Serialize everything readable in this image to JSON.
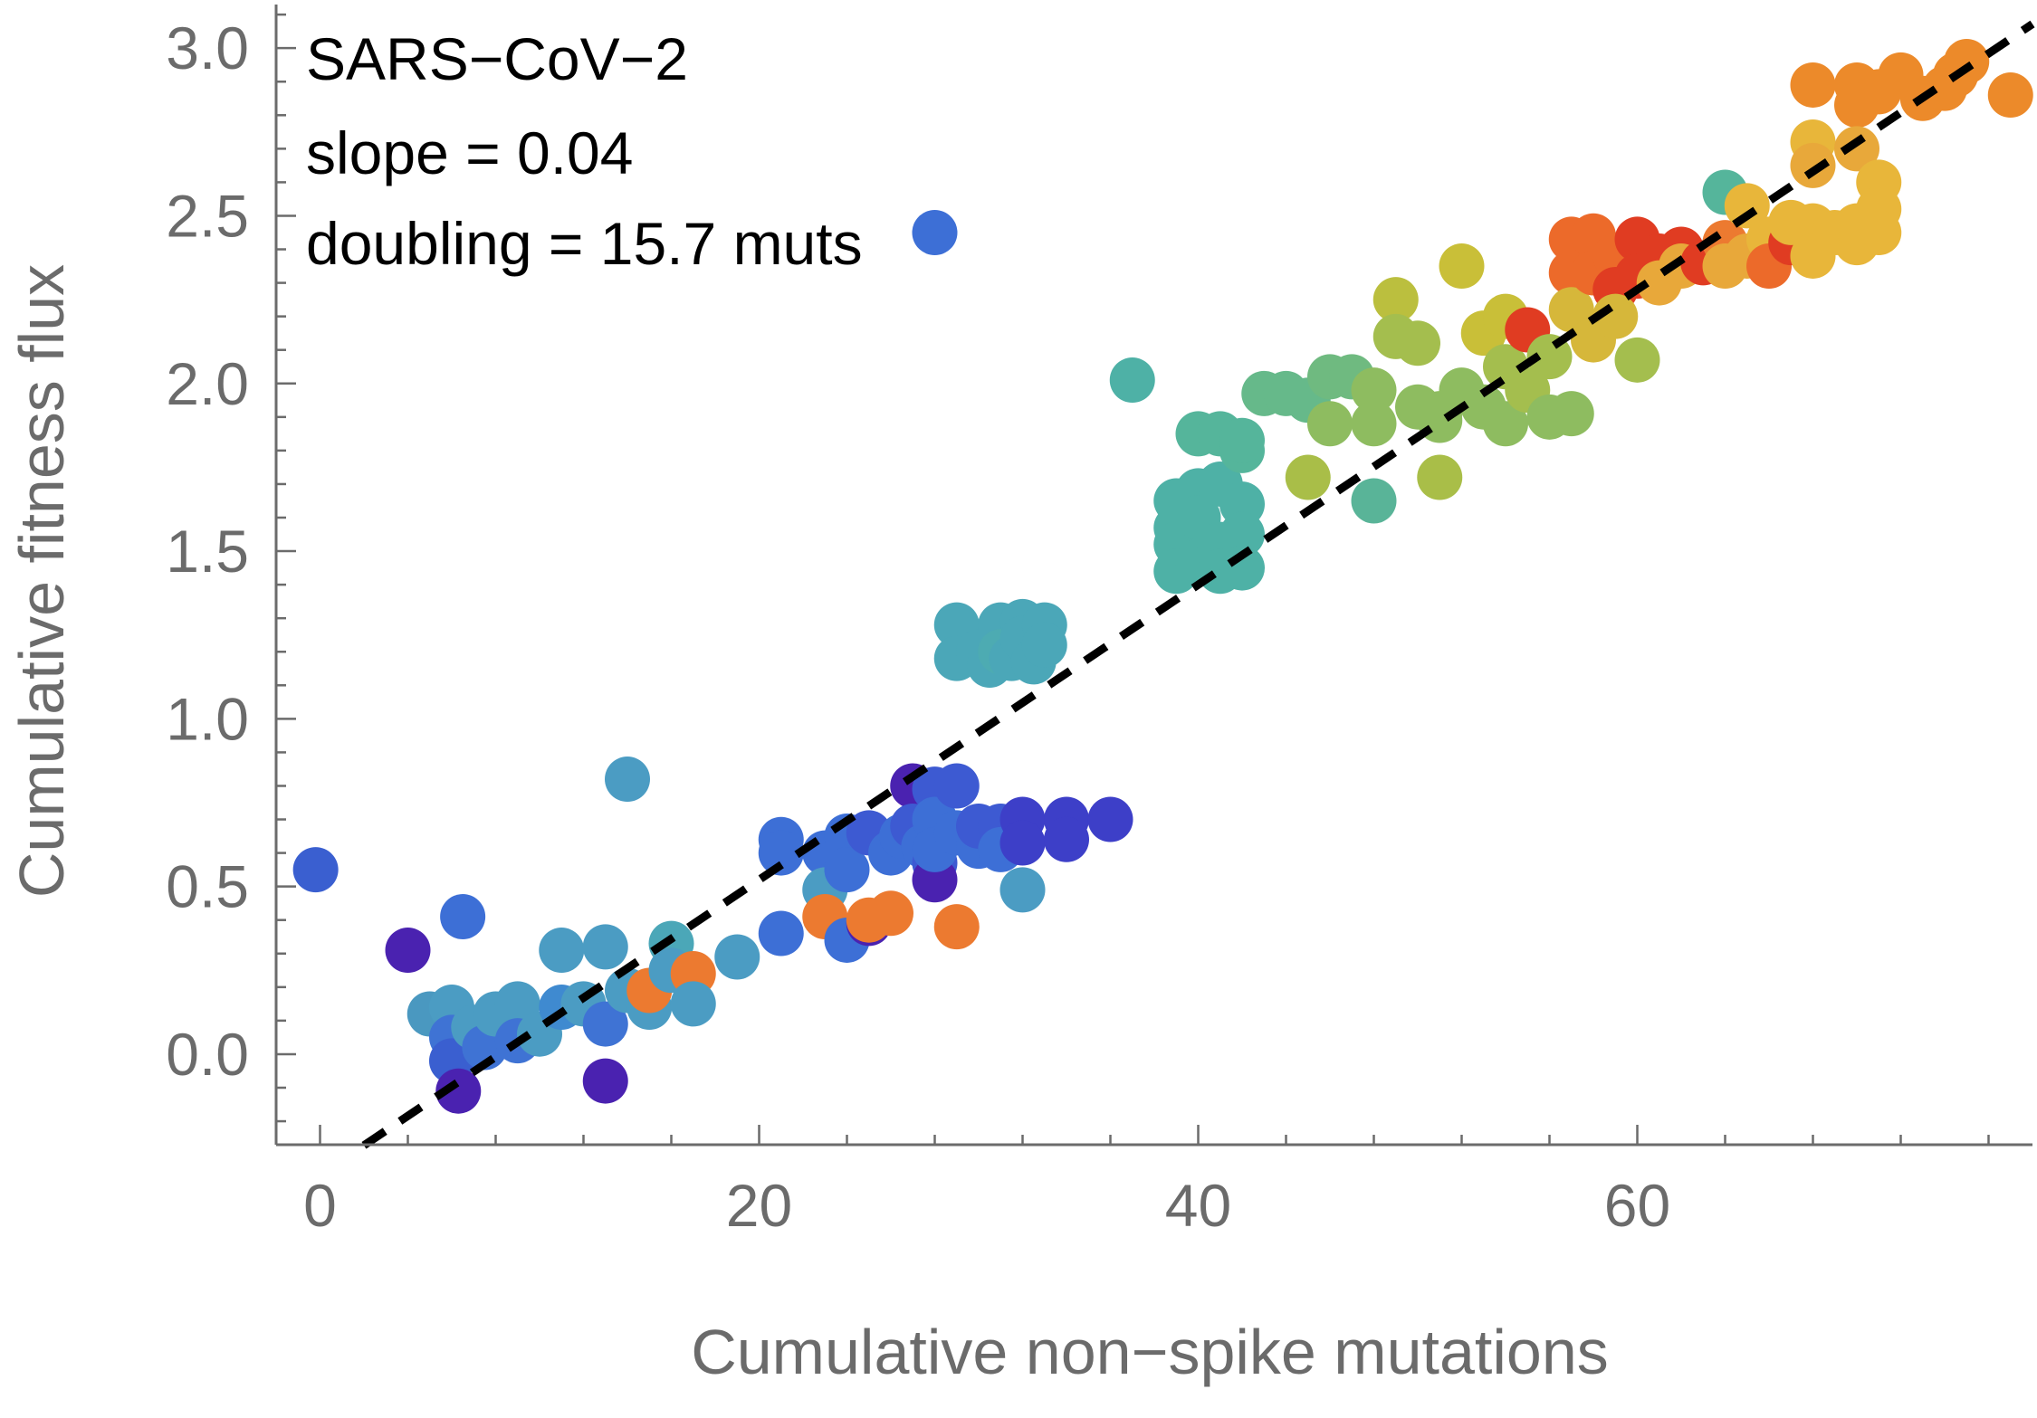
{
  "chart_data": {
    "type": "scatter",
    "title": "",
    "xlabel": "Cumulative non−spike mutations",
    "ylabel": "Cumulative fitness flux",
    "xlim": [
      -2,
      78
    ],
    "ylim": [
      -0.27,
      3.13
    ],
    "x_ticks": [
      0,
      20,
      40,
      60
    ],
    "x_tick_labels": [
      "0",
      "20",
      "40",
      "60"
    ],
    "y_ticks": [
      0.0,
      0.5,
      1.0,
      1.5,
      2.0,
      2.5,
      3.0
    ],
    "y_tick_labels": [
      "0.0",
      "0.5",
      "1.0",
      "1.5",
      "2.0",
      "2.5",
      "3.0"
    ],
    "annotations": [
      "SARS−CoV−2",
      "slope = 0.04",
      "doubling = 15.7 muts"
    ],
    "fit_line": {
      "slope": 0.044,
      "intercept": -0.36,
      "x_range": [
        2,
        78
      ],
      "style": "dashed",
      "color": "#000000"
    },
    "grid": false,
    "legend": "none",
    "point_colors_note": "colors by position in sequence, purple → blue → teal → green → yellow → orange → red",
    "points": [
      {
        "x": -0.2,
        "y": 0.55,
        "c": "#3a5fd0"
      },
      {
        "x": 4,
        "y": 0.31,
        "c": "#4a22b0"
      },
      {
        "x": 6.5,
        "y": 0.41,
        "c": "#3d6fd6"
      },
      {
        "x": 5,
        "y": 0.12,
        "c": "#4a98c0"
      },
      {
        "x": 6,
        "y": 0.14,
        "c": "#4b9cc3"
      },
      {
        "x": 6,
        "y": 0.05,
        "c": "#3f73d4"
      },
      {
        "x": 6,
        "y": -0.02,
        "c": "#3a5fd0"
      },
      {
        "x": 6.3,
        "y": -0.11,
        "c": "#4a22b0"
      },
      {
        "x": 7,
        "y": 0.08,
        "c": "#4b9cc3"
      },
      {
        "x": 7.5,
        "y": 0.02,
        "c": "#3f73d4"
      },
      {
        "x": 8,
        "y": 0.12,
        "c": "#4b9cc3"
      },
      {
        "x": 9,
        "y": 0.15,
        "c": "#4b9cc3"
      },
      {
        "x": 9,
        "y": 0.04,
        "c": "#3f73d4"
      },
      {
        "x": 10,
        "y": 0.06,
        "c": "#4b9cc3"
      },
      {
        "x": 11,
        "y": 0.31,
        "c": "#4b9cc3"
      },
      {
        "x": 11,
        "y": 0.14,
        "c": "#3f8ad0"
      },
      {
        "x": 12,
        "y": 0.15,
        "c": "#4b9cc3"
      },
      {
        "x": 13,
        "y": 0.32,
        "c": "#4b9cc3"
      },
      {
        "x": 13,
        "y": 0.09,
        "c": "#3f73d4"
      },
      {
        "x": 13,
        "y": -0.08,
        "c": "#4a22b0"
      },
      {
        "x": 14,
        "y": 0.82,
        "c": "#4b9cc3"
      },
      {
        "x": 14,
        "y": 0.19,
        "c": "#4b9cc3"
      },
      {
        "x": 15,
        "y": 0.14,
        "c": "#4b9cc3"
      },
      {
        "x": 15,
        "y": 0.19,
        "c": "#ec7a30"
      },
      {
        "x": 16,
        "y": 0.33,
        "c": "#4ba7b8"
      },
      {
        "x": 16,
        "y": 0.25,
        "c": "#4b9cc3"
      },
      {
        "x": 17,
        "y": 0.24,
        "c": "#ec7a30"
      },
      {
        "x": 17,
        "y": 0.15,
        "c": "#4b9cc3"
      },
      {
        "x": 19,
        "y": 0.29,
        "c": "#4b9cc3"
      },
      {
        "x": 21,
        "y": 0.64,
        "c": "#3d6fd6"
      },
      {
        "x": 21,
        "y": 0.6,
        "c": "#3d6fd6"
      },
      {
        "x": 21,
        "y": 0.36,
        "c": "#3d6fd6"
      },
      {
        "x": 23,
        "y": 0.6,
        "c": "#3d6fd6"
      },
      {
        "x": 23,
        "y": 0.49,
        "c": "#4b9cc3"
      },
      {
        "x": 23,
        "y": 0.41,
        "c": "#ec7a30"
      },
      {
        "x": 24,
        "y": 0.65,
        "c": "#3d6fd6"
      },
      {
        "x": 24,
        "y": 0.55,
        "c": "#3d6fd6"
      },
      {
        "x": 24,
        "y": 0.34,
        "c": "#3d6fd6"
      },
      {
        "x": 25,
        "y": 0.66,
        "c": "#3d5ad2"
      },
      {
        "x": 25,
        "y": 0.39,
        "c": "#4a22b0"
      },
      {
        "x": 25,
        "y": 0.4,
        "c": "#ec7a30"
      },
      {
        "x": 26,
        "y": 0.6,
        "c": "#3d6fd6"
      },
      {
        "x": 26,
        "y": 0.42,
        "c": "#ec7a30"
      },
      {
        "x": 26.5,
        "y": 0.65,
        "c": "#3d6fd6"
      },
      {
        "x": 27,
        "y": 0.8,
        "c": "#4a22b0"
      },
      {
        "x": 27,
        "y": 0.68,
        "c": "#3d5ad2"
      },
      {
        "x": 27.5,
        "y": 0.62,
        "c": "#3d6fd6"
      },
      {
        "x": 28,
        "y": 2.45,
        "c": "#3d6fd6"
      },
      {
        "x": 28,
        "y": 0.79,
        "c": "#3d5ad2"
      },
      {
        "x": 28,
        "y": 0.7,
        "c": "#3d6fd6"
      },
      {
        "x": 28,
        "y": 0.57,
        "c": "#3d5ad2"
      },
      {
        "x": 28,
        "y": 0.52,
        "c": "#4a22b0"
      },
      {
        "x": 28,
        "y": 0.61,
        "c": "#3d6fd6"
      },
      {
        "x": 29,
        "y": 0.8,
        "c": "#3d5ad2"
      },
      {
        "x": 29,
        "y": 0.66,
        "c": "#3d6fd6"
      },
      {
        "x": 29,
        "y": 0.38,
        "c": "#ec7a30"
      },
      {
        "x": 30,
        "y": 0.62,
        "c": "#3d6fd6"
      },
      {
        "x": 30,
        "y": 0.68,
        "c": "#3d5ad2"
      },
      {
        "x": 31,
        "y": 0.68,
        "c": "#3d5ad2"
      },
      {
        "x": 31,
        "y": 0.61,
        "c": "#3d6fd6"
      },
      {
        "x": 32,
        "y": 0.7,
        "c": "#3d3fc8"
      },
      {
        "x": 32,
        "y": 0.63,
        "c": "#3d3fc8"
      },
      {
        "x": 32,
        "y": 0.49,
        "c": "#4b9cc3"
      },
      {
        "x": 34,
        "y": 0.7,
        "c": "#3d3fc8"
      },
      {
        "x": 34,
        "y": 0.64,
        "c": "#3d3fc8"
      },
      {
        "x": 36,
        "y": 0.7,
        "c": "#3d3fc8"
      },
      {
        "x": 29,
        "y": 1.28,
        "c": "#4ba7b8"
      },
      {
        "x": 29,
        "y": 1.18,
        "c": "#4ba7b8"
      },
      {
        "x": 30,
        "y": 1.2,
        "c": "#4ba7b8"
      },
      {
        "x": 30.5,
        "y": 1.16,
        "c": "#4ba7b8"
      },
      {
        "x": 31,
        "y": 1.28,
        "c": "#4ba7b8"
      },
      {
        "x": 31,
        "y": 1.2,
        "c": "#4dabb2"
      },
      {
        "x": 31.5,
        "y": 1.18,
        "c": "#4ba7b8"
      },
      {
        "x": 32,
        "y": 1.29,
        "c": "#4ba7b8"
      },
      {
        "x": 32,
        "y": 1.24,
        "c": "#4ba7b8"
      },
      {
        "x": 32.5,
        "y": 1.17,
        "c": "#4ba7b8"
      },
      {
        "x": 33,
        "y": 1.28,
        "c": "#4ba7b8"
      },
      {
        "x": 33,
        "y": 1.22,
        "c": "#4ba7b8"
      },
      {
        "x": 37,
        "y": 2.01,
        "c": "#4eb1a6"
      },
      {
        "x": 39,
        "y": 1.65,
        "c": "#4eb1a6"
      },
      {
        "x": 39,
        "y": 1.57,
        "c": "#4eb1a6"
      },
      {
        "x": 39,
        "y": 1.52,
        "c": "#4eb1a6"
      },
      {
        "x": 39,
        "y": 1.44,
        "c": "#4eb1a6"
      },
      {
        "x": 40,
        "y": 1.85,
        "c": "#55b59b"
      },
      {
        "x": 40,
        "y": 1.68,
        "c": "#4eb1a6"
      },
      {
        "x": 40,
        "y": 1.6,
        "c": "#4eb1a6"
      },
      {
        "x": 40,
        "y": 1.47,
        "c": "#4eb1a6"
      },
      {
        "x": 41,
        "y": 1.85,
        "c": "#55b59b"
      },
      {
        "x": 41,
        "y": 1.7,
        "c": "#4eb1a6"
      },
      {
        "x": 41,
        "y": 1.52,
        "c": "#4eb1a6"
      },
      {
        "x": 41,
        "y": 1.44,
        "c": "#4eb1a6"
      },
      {
        "x": 42,
        "y": 1.8,
        "c": "#55b59b"
      },
      {
        "x": 42,
        "y": 1.64,
        "c": "#4eb1a6"
      },
      {
        "x": 42,
        "y": 1.55,
        "c": "#4eb1a6"
      },
      {
        "x": 42,
        "y": 1.45,
        "c": "#4eb1a6"
      },
      {
        "x": 42,
        "y": 1.83,
        "c": "#55b59b"
      },
      {
        "x": 43,
        "y": 1.97,
        "c": "#66b98a"
      },
      {
        "x": 44,
        "y": 1.97,
        "c": "#66b98a"
      },
      {
        "x": 45,
        "y": 1.72,
        "c": "#a9be48"
      },
      {
        "x": 45,
        "y": 1.95,
        "c": "#66b98a"
      },
      {
        "x": 46,
        "y": 2.02,
        "c": "#6fba80"
      },
      {
        "x": 46,
        "y": 1.88,
        "c": "#8ebc60"
      },
      {
        "x": 47,
        "y": 2.02,
        "c": "#6fba80"
      },
      {
        "x": 48,
        "y": 1.65,
        "c": "#59b498"
      },
      {
        "x": 48,
        "y": 1.98,
        "c": "#8ebc60"
      },
      {
        "x": 48,
        "y": 1.88,
        "c": "#8ebc60"
      },
      {
        "x": 49,
        "y": 2.25,
        "c": "#bbbf3e"
      },
      {
        "x": 49,
        "y": 2.14,
        "c": "#a4be4e"
      },
      {
        "x": 50,
        "y": 2.12,
        "c": "#a4be4e"
      },
      {
        "x": 50,
        "y": 1.93,
        "c": "#8ebc60"
      },
      {
        "x": 51,
        "y": 1.91,
        "c": "#8ebc60"
      },
      {
        "x": 51,
        "y": 1.72,
        "c": "#a9be48"
      },
      {
        "x": 51,
        "y": 1.89,
        "c": "#8ebc60"
      },
      {
        "x": 52,
        "y": 2.35,
        "c": "#c9bf38"
      },
      {
        "x": 52,
        "y": 1.98,
        "c": "#8ebc60"
      },
      {
        "x": 53,
        "y": 2.15,
        "c": "#c9bf38"
      },
      {
        "x": 53,
        "y": 1.93,
        "c": "#8ebc60"
      },
      {
        "x": 54,
        "y": 2.2,
        "c": "#c9bf38"
      },
      {
        "x": 54,
        "y": 2.05,
        "c": "#a4be4e"
      },
      {
        "x": 54,
        "y": 1.88,
        "c": "#8ebc60"
      },
      {
        "x": 55,
        "y": 2.16,
        "c": "#e03c22"
      },
      {
        "x": 55,
        "y": 1.98,
        "c": "#a4be4e"
      },
      {
        "x": 56,
        "y": 2.08,
        "c": "#a4be4e"
      },
      {
        "x": 56,
        "y": 1.9,
        "c": "#8ebc60"
      },
      {
        "x": 57,
        "y": 2.43,
        "c": "#ec6a2a"
      },
      {
        "x": 57,
        "y": 2.33,
        "c": "#ec6a2a"
      },
      {
        "x": 57,
        "y": 2.22,
        "c": "#d6b73a"
      },
      {
        "x": 57,
        "y": 1.91,
        "c": "#8ebc60"
      },
      {
        "x": 58,
        "y": 2.44,
        "c": "#ec6a2a"
      },
      {
        "x": 58,
        "y": 2.33,
        "c": "#ec6a2a"
      },
      {
        "x": 58,
        "y": 2.13,
        "c": "#d6b73a"
      },
      {
        "x": 59,
        "y": 2.38,
        "c": "#ec6a2a"
      },
      {
        "x": 59,
        "y": 2.28,
        "c": "#e03c22"
      },
      {
        "x": 59,
        "y": 2.2,
        "c": "#d6b73a"
      },
      {
        "x": 60,
        "y": 2.43,
        "c": "#e03c22"
      },
      {
        "x": 60,
        "y": 2.32,
        "c": "#e03c22"
      },
      {
        "x": 60,
        "y": 2.07,
        "c": "#a4be4e"
      },
      {
        "x": 61,
        "y": 2.38,
        "c": "#e03c22"
      },
      {
        "x": 61,
        "y": 2.3,
        "c": "#e8a83a"
      },
      {
        "x": 62,
        "y": 2.4,
        "c": "#e03c22"
      },
      {
        "x": 62,
        "y": 2.35,
        "c": "#e8a83a"
      },
      {
        "x": 63,
        "y": 2.36,
        "c": "#e03c22"
      },
      {
        "x": 64,
        "y": 2.57,
        "c": "#55b59b"
      },
      {
        "x": 64,
        "y": 2.42,
        "c": "#ec7a30"
      },
      {
        "x": 64,
        "y": 2.35,
        "c": "#e8a83a"
      },
      {
        "x": 65,
        "y": 2.53,
        "c": "#e8b63a"
      },
      {
        "x": 65,
        "y": 2.38,
        "c": "#e8a83a"
      },
      {
        "x": 66,
        "y": 2.43,
        "c": "#e8b63a"
      },
      {
        "x": 66,
        "y": 2.35,
        "c": "#ec6a2a"
      },
      {
        "x": 67,
        "y": 2.42,
        "c": "#e03c22"
      },
      {
        "x": 67,
        "y": 2.48,
        "c": "#e8b63a"
      },
      {
        "x": 68,
        "y": 2.89,
        "c": "#ec8a2a"
      },
      {
        "x": 68,
        "y": 2.72,
        "c": "#e8b63a"
      },
      {
        "x": 68,
        "y": 2.65,
        "c": "#e8a83a"
      },
      {
        "x": 68,
        "y": 2.47,
        "c": "#e8b63a"
      },
      {
        "x": 68,
        "y": 2.38,
        "c": "#e8b63a"
      },
      {
        "x": 69,
        "y": 2.45,
        "c": "#e8b63a"
      },
      {
        "x": 70,
        "y": 2.89,
        "c": "#ec8a2a"
      },
      {
        "x": 70,
        "y": 2.83,
        "c": "#ec8a2a"
      },
      {
        "x": 70,
        "y": 2.7,
        "c": "#e8a83a"
      },
      {
        "x": 70,
        "y": 2.42,
        "c": "#e8b63a"
      },
      {
        "x": 70,
        "y": 2.47,
        "c": "#e8b63a"
      },
      {
        "x": 71,
        "y": 2.87,
        "c": "#ec8a2a"
      },
      {
        "x": 71,
        "y": 2.6,
        "c": "#e8b63a"
      },
      {
        "x": 71,
        "y": 2.52,
        "c": "#e8b63a"
      },
      {
        "x": 71,
        "y": 2.45,
        "c": "#e8b63a"
      },
      {
        "x": 72,
        "y": 2.92,
        "c": "#ec8a2a"
      },
      {
        "x": 73,
        "y": 2.85,
        "c": "#ec8a2a"
      },
      {
        "x": 74,
        "y": 2.88,
        "c": "#ec8a2a"
      },
      {
        "x": 74.5,
        "y": 2.92,
        "c": "#ec8a2a"
      },
      {
        "x": 75,
        "y": 2.96,
        "c": "#ec8a2a"
      },
      {
        "x": 77,
        "y": 2.86,
        "c": "#ec8a2a"
      }
    ]
  }
}
